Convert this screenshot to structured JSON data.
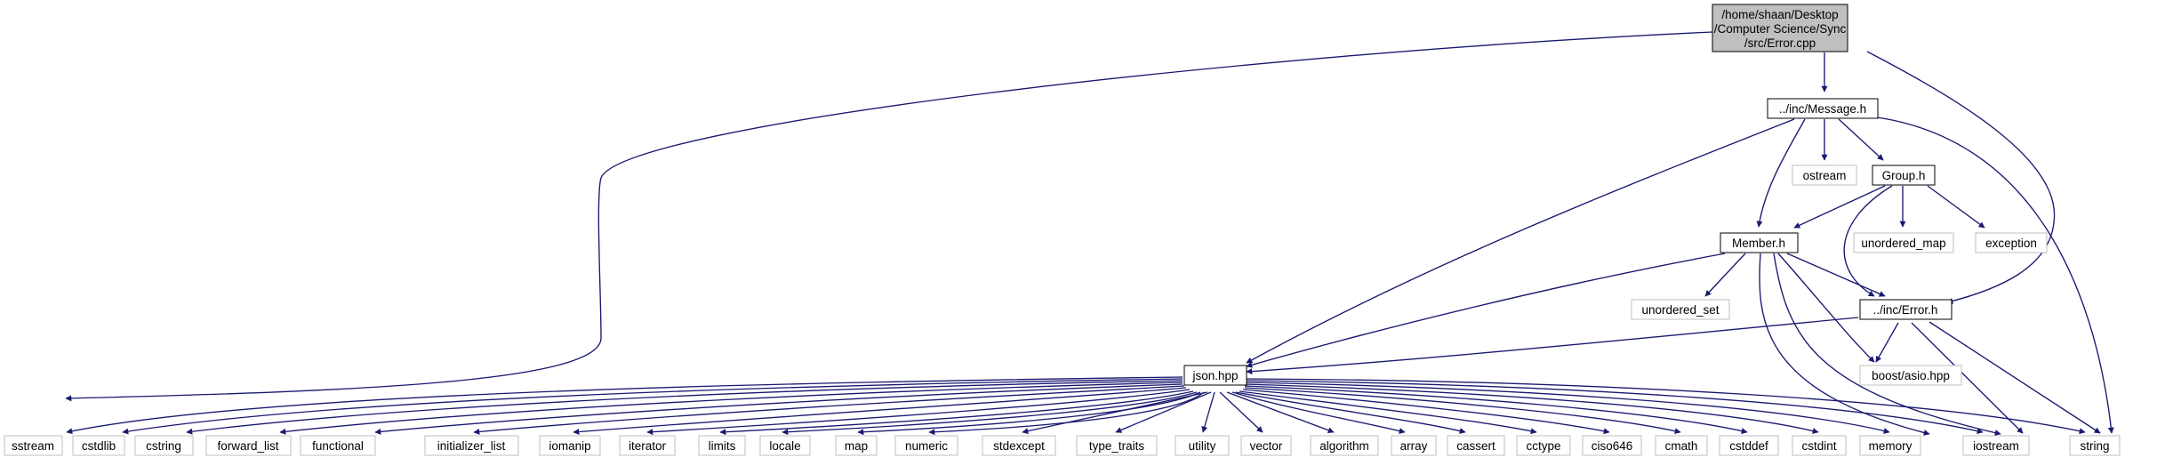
{
  "diagram": {
    "type": "include-dependency-graph",
    "root_label_lines": [
      "/home/shaan/Desktop",
      "/Computer Science/Sync",
      "/src/Error.cpp"
    ],
    "nodes": {
      "message": "../inc/Message.h",
      "ostream": "ostream",
      "group": "Group.h",
      "member": "Member.h",
      "unordered_map": "unordered_map",
      "exception": "exception",
      "unordered_set": "unordered_set",
      "error_h": "../inc/Error.h",
      "json": "json.hpp",
      "boost_asio": "boost/asio.hpp",
      "sstream": "sstream",
      "cstdlib": "cstdlib",
      "cstring": "cstring",
      "forward_list": "forward_list",
      "functional": "functional",
      "initializer_list": "initializer_list",
      "iomanip": "iomanip",
      "iterator": "iterator",
      "limits": "limits",
      "locale": "locale",
      "map": "map",
      "numeric": "numeric",
      "stdexcept": "stdexcept",
      "type_traits": "type_traits",
      "utility": "utility",
      "vector": "vector",
      "algorithm": "algorithm",
      "array": "array",
      "cassert": "cassert",
      "cctype": "cctype",
      "ciso646": "ciso646",
      "cmath": "cmath",
      "cstddef": "cstddef",
      "cstdint": "cstdint",
      "memory": "memory",
      "iostream": "iostream",
      "string": "string"
    },
    "colors": {
      "edge": "#191970",
      "root_fill": "#bfbfbf",
      "node_border": "#000000",
      "system_border": "#bfbfbf"
    }
  }
}
